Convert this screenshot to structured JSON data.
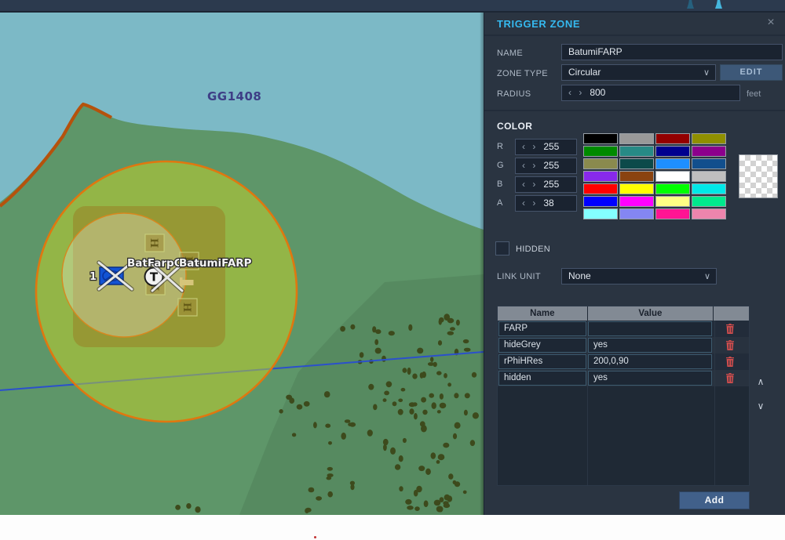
{
  "map": {
    "grid_label": "GG1408",
    "zone_labels": [
      "BatFarpClone",
      "BatumiFARP"
    ],
    "unit_number": "1",
    "trigger_icon_letter": "T"
  },
  "panel": {
    "title": "TRIGGER ZONE",
    "close": "×",
    "name": {
      "label": "NAME",
      "value": "BatumiFARP"
    },
    "zone_type": {
      "label": "ZONE TYPE",
      "value": "Circular",
      "edit_label": "EDIT"
    },
    "radius": {
      "label": "RADIUS",
      "value": "800",
      "unit": "feet"
    },
    "color": {
      "label": "COLOR",
      "channels": [
        {
          "label": "R",
          "value": "255"
        },
        {
          "label": "G",
          "value": "255"
        },
        {
          "label": "B",
          "value": "255"
        },
        {
          "label": "A",
          "value": "38"
        }
      ],
      "palette": [
        "#000000",
        "#999999",
        "#930000",
        "#8f8f00",
        "#008a00",
        "#278a86",
        "#00008f",
        "#8c008c",
        "#8a8a4e",
        "#0c4a4a",
        "#1e8fff",
        "#124f8d",
        "#8829ea",
        "#8a4310",
        "#ffffff",
        "#bfbfbf",
        "#ff0000",
        "#ffff00",
        "#00ff00",
        "#00e8e8",
        "#0000ff",
        "#ff00ff",
        "#ffff84",
        "#00e98d",
        "#84ffff",
        "#8486f2",
        "#ff1493",
        "#ed85ad"
      ]
    },
    "hidden": {
      "label": "HIDDEN",
      "checked": false
    },
    "link_unit": {
      "label": "LINK UNIT",
      "value": "None"
    },
    "table": {
      "headers": [
        "Name",
        "Value"
      ],
      "rows": [
        {
          "name": "FARP",
          "value": ""
        },
        {
          "name": "hideGrey",
          "value": "yes"
        },
        {
          "name": "rPhiHRes",
          "value": "200,0,90"
        },
        {
          "name": "hidden",
          "value": "yes"
        }
      ]
    },
    "add_label": "Add"
  },
  "accent_colors": {
    "header_cyan": "#35b9ef",
    "zone_border_orange": "#e0770f",
    "ridge_orange": "#b5520c",
    "water": "#7cb9c6",
    "land": "#5e9669",
    "trash_red": "#cf4d4d"
  }
}
